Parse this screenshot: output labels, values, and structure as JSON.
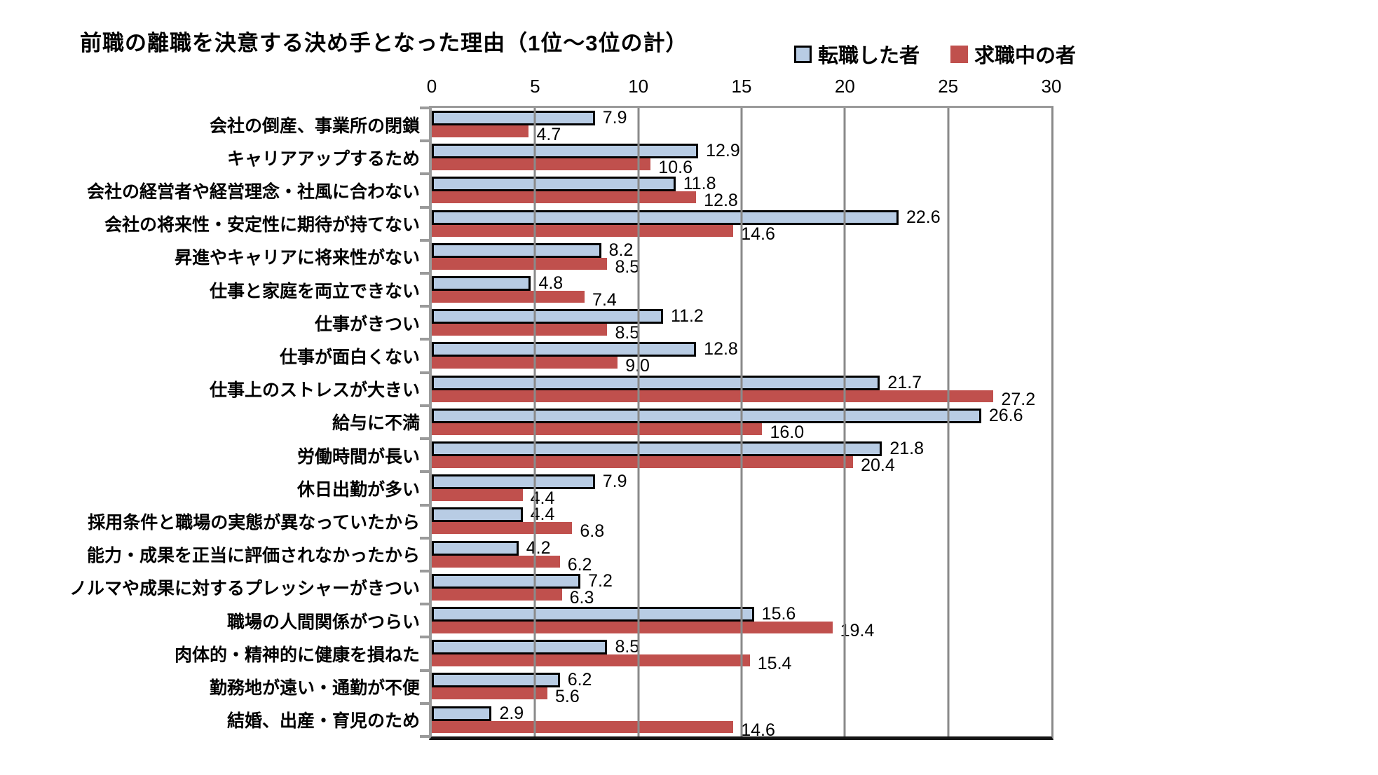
{
  "title": "前職の離職を決意する決め手となった理由（1位～3位の計）",
  "legend": {
    "items": [
      {
        "label": "転職した者",
        "color": "#b8cce4",
        "border": "#000000"
      },
      {
        "label": "求職中の者",
        "color": "#c0504d",
        "border": "none"
      }
    ]
  },
  "chart_data": {
    "type": "bar",
    "orientation": "horizontal",
    "title": "前職の離職を決意する決め手となった理由（1位～3位の計）",
    "xlabel": "",
    "ylabel": "",
    "xlim": [
      0,
      30
    ],
    "x_ticks": [
      0,
      5,
      10,
      15,
      20,
      25,
      30
    ],
    "grid": true,
    "value_labels": true,
    "value_label_format": "0.1f",
    "legend_position": "top-right",
    "categories": [
      "会社の倒産、事業所の閉鎖",
      "キャリアアップするため",
      "会社の経営者や経営理念・社風に合わない",
      "会社の将来性・安定性に期待が持てない",
      "昇進やキャリアに将来性がない",
      "仕事と家庭を両立できない",
      "仕事がきつい",
      "仕事が面白くない",
      "仕事上のストレスが大きい",
      "給与に不満",
      "労働時間が長い",
      "休日出勤が多い",
      "採用条件と職場の実態が異なっていたから",
      "能力・成果を正当に評価されなかったから",
      "ノルマや成果に対するプレッシャーがきつい",
      "職場の人間関係がつらい",
      "肉体的・精神的に健康を損ねた",
      "勤務地が遠い・通勤が不便",
      "結婚、出産・育児のため"
    ],
    "series": [
      {
        "name": "転職した者",
        "color": "#b8cce4",
        "border_color": "#000000",
        "values": [
          7.9,
          12.9,
          11.8,
          22.6,
          8.2,
          4.8,
          11.2,
          12.8,
          21.7,
          26.6,
          21.8,
          7.9,
          4.4,
          4.2,
          7.2,
          15.6,
          8.5,
          6.2,
          2.9
        ]
      },
      {
        "name": "求職中の者",
        "color": "#c0504d",
        "border_color": "none",
        "values": [
          4.7,
          10.6,
          12.8,
          14.6,
          8.5,
          7.4,
          8.5,
          9.0,
          27.2,
          16.0,
          20.4,
          4.4,
          6.8,
          6.2,
          6.3,
          19.4,
          15.4,
          5.6,
          14.6
        ]
      }
    ]
  }
}
